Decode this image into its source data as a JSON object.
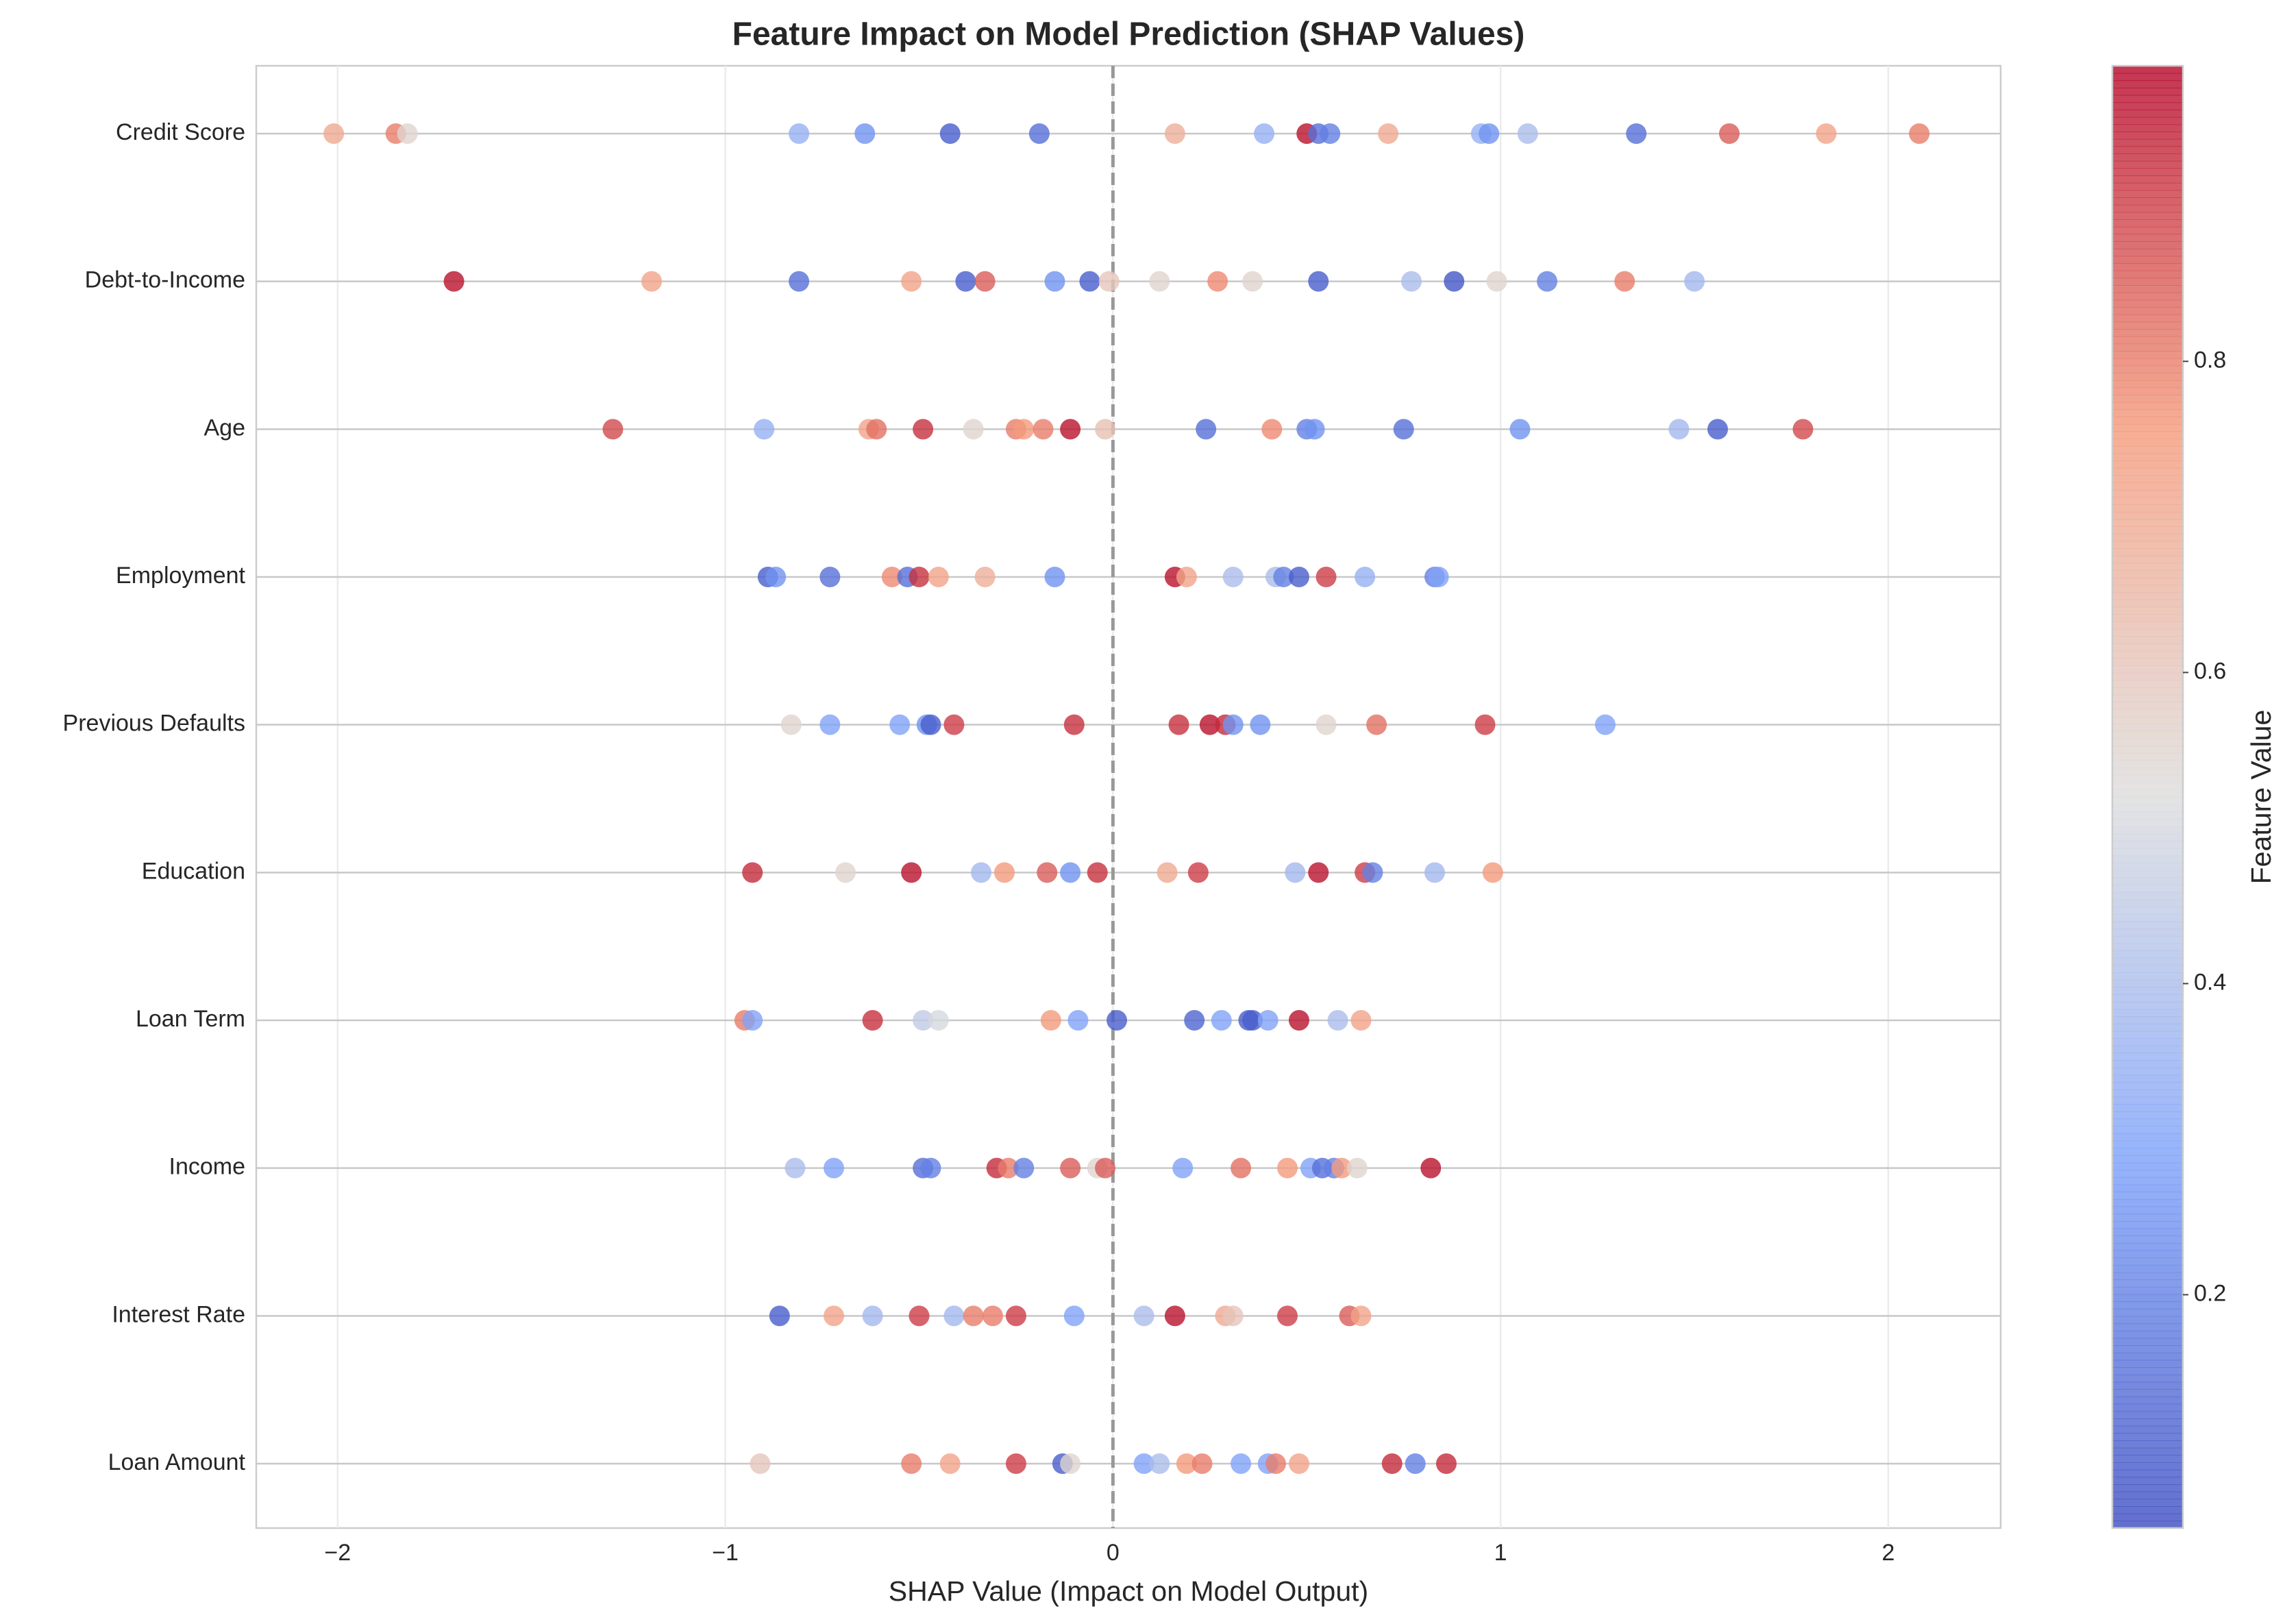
{
  "chart_data": {
    "type": "scatter",
    "title": "Feature Impact on Model Prediction (SHAP Values)",
    "xlabel": "SHAP Value (Impact on Model Output)",
    "xlim": [
      -2.21,
      2.29
    ],
    "xticks": [
      {
        "value": -2,
        "label": "−2"
      },
      {
        "value": -1,
        "label": "−1"
      },
      0,
      1,
      2
    ],
    "grid": true,
    "zero_line": true,
    "colormap": [
      "#3b4cc0",
      "#7b9ff9",
      "#dddddd",
      "#f49a7b",
      "#b40426"
    ],
    "colorbar": {
      "label": "Feature Value",
      "lim": [
        0.05,
        0.99
      ],
      "ticks": [
        0.2,
        0.4,
        0.6,
        0.8
      ]
    },
    "rows": [
      {
        "name": "Credit Score",
        "x": [
          -2.01,
          -1.85,
          -1.82,
          -0.81,
          -0.64,
          -0.42,
          -0.19,
          0.16,
          0.39,
          0.5,
          0.53,
          0.56,
          0.71,
          0.95,
          0.97,
          1.07,
          1.35,
          1.59,
          1.84,
          2.08
        ],
        "values": [
          0.7,
          0.8,
          0.55,
          0.35,
          0.25,
          0.1,
          0.15,
          0.68,
          0.35,
          0.97,
          0.15,
          0.2,
          0.7,
          0.35,
          0.25,
          0.4,
          0.15,
          0.85,
          0.72,
          0.8
        ]
      },
      {
        "name": "Debt-to-Income",
        "x": [
          -1.7,
          -1.19,
          -0.81,
          -0.52,
          -0.38,
          -0.33,
          -0.15,
          -0.06,
          -0.01,
          0.12,
          0.27,
          0.36,
          0.53,
          0.77,
          0.88,
          0.99,
          1.12,
          1.32,
          1.5
        ],
        "values": [
          0.97,
          0.72,
          0.15,
          0.72,
          0.1,
          0.85,
          0.25,
          0.1,
          0.6,
          0.55,
          0.78,
          0.55,
          0.1,
          0.4,
          0.08,
          0.55,
          0.2,
          0.8,
          0.38
        ]
      },
      {
        "name": "Age",
        "x": [
          -1.29,
          -0.9,
          -0.63,
          -0.61,
          -0.49,
          -0.36,
          -0.25,
          -0.23,
          -0.18,
          -0.11,
          -0.02,
          0.24,
          0.41,
          0.5,
          0.52,
          0.75,
          1.05,
          1.46,
          1.56,
          1.78
        ],
        "values": [
          0.88,
          0.35,
          0.72,
          0.82,
          0.92,
          0.55,
          0.8,
          0.75,
          0.8,
          0.97,
          0.62,
          0.15,
          0.78,
          0.2,
          0.25,
          0.15,
          0.25,
          0.38,
          0.1,
          0.88
        ]
      },
      {
        "name": "Employment",
        "x": [
          -0.89,
          -0.87,
          -0.73,
          -0.57,
          -0.53,
          -0.5,
          -0.45,
          -0.33,
          -0.15,
          0.16,
          0.19,
          0.31,
          0.42,
          0.44,
          0.48,
          0.55,
          0.65,
          0.83,
          0.84
        ],
        "values": [
          0.1,
          0.25,
          0.15,
          0.78,
          0.15,
          0.92,
          0.72,
          0.68,
          0.25,
          0.97,
          0.72,
          0.4,
          0.4,
          0.2,
          0.1,
          0.9,
          0.35,
          0.2,
          0.3
        ]
      },
      {
        "name": "Previous Defaults",
        "x": [
          -0.83,
          -0.73,
          -0.55,
          -0.48,
          -0.47,
          -0.41,
          -0.1,
          0.17,
          0.25,
          0.29,
          0.31,
          0.38,
          0.55,
          0.68,
          0.96,
          1.27
        ],
        "values": [
          0.55,
          0.3,
          0.3,
          0.25,
          0.1,
          0.9,
          0.92,
          0.92,
          0.97,
          0.93,
          0.25,
          0.25,
          0.55,
          0.82,
          0.9,
          0.3
        ]
      },
      {
        "name": "Education",
        "x": [
          -0.93,
          -0.69,
          -0.52,
          -0.34,
          -0.28,
          -0.17,
          -0.11,
          -0.04,
          0.14,
          0.22,
          0.47,
          0.53,
          0.65,
          0.67,
          0.83,
          0.98
        ],
        "values": [
          0.93,
          0.55,
          0.97,
          0.38,
          0.75,
          0.85,
          0.25,
          0.92,
          0.7,
          0.9,
          0.38,
          0.97,
          0.9,
          0.2,
          0.38,
          0.75
        ]
      },
      {
        "name": "Loan Term",
        "x": [
          -0.95,
          -0.93,
          -0.62,
          -0.49,
          -0.45,
          -0.16,
          -0.09,
          0.01,
          0.21,
          0.28,
          0.35,
          0.36,
          0.4,
          0.48,
          0.58,
          0.64
        ],
        "values": [
          0.8,
          0.3,
          0.92,
          0.45,
          0.5,
          0.75,
          0.3,
          0.1,
          0.12,
          0.3,
          0.1,
          0.1,
          0.3,
          0.97,
          0.4,
          0.72
        ]
      },
      {
        "name": "Income",
        "x": [
          -0.82,
          -0.72,
          -0.49,
          -0.47,
          -0.3,
          -0.27,
          -0.23,
          -0.11,
          -0.04,
          -0.02,
          0.18,
          0.33,
          0.45,
          0.51,
          0.54,
          0.57,
          0.59,
          0.63,
          0.82
        ],
        "values": [
          0.4,
          0.3,
          0.15,
          0.2,
          0.93,
          0.8,
          0.2,
          0.85,
          0.55,
          0.85,
          0.3,
          0.82,
          0.75,
          0.3,
          0.15,
          0.2,
          0.75,
          0.55,
          0.97
        ]
      },
      {
        "name": "Interest Rate",
        "x": [
          -0.86,
          -0.72,
          -0.62,
          -0.5,
          -0.41,
          -0.36,
          -0.31,
          -0.25,
          -0.1,
          0.08,
          0.16,
          0.29,
          0.31,
          0.45,
          0.61,
          0.64
        ],
        "values": [
          0.1,
          0.72,
          0.38,
          0.9,
          0.38,
          0.8,
          0.8,
          0.9,
          0.3,
          0.4,
          0.97,
          0.7,
          0.6,
          0.9,
          0.85,
          0.72
        ]
      },
      {
        "name": "Loan Amount",
        "x": [
          -0.91,
          -0.52,
          -0.42,
          -0.25,
          -0.13,
          -0.11,
          0.08,
          0.12,
          0.19,
          0.23,
          0.33,
          0.4,
          0.42,
          0.48,
          0.72,
          0.78,
          0.86
        ],
        "values": [
          0.6,
          0.8,
          0.72,
          0.9,
          0.1,
          0.55,
          0.3,
          0.4,
          0.75,
          0.8,
          0.3,
          0.3,
          0.8,
          0.72,
          0.93,
          0.2,
          0.93
        ]
      }
    ]
  }
}
